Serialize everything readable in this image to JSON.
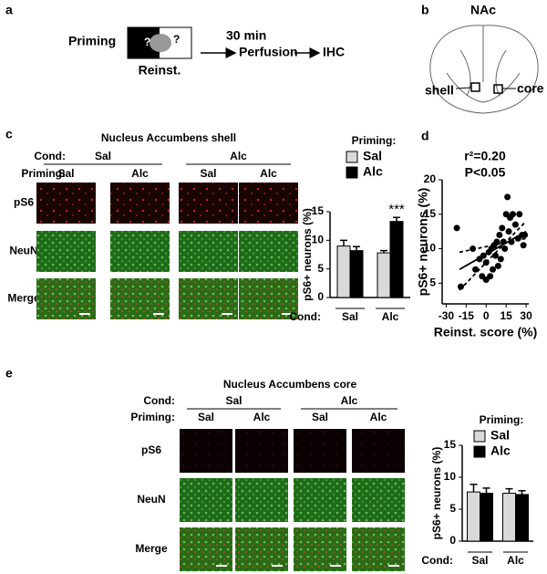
{
  "panel_a": {
    "label": "a",
    "priming": "Priming",
    "question_marks": [
      "?",
      "?"
    ],
    "reinst": "Reinst.",
    "delay": "30 min",
    "step1": "Perfusion",
    "step2": "IHC"
  },
  "panel_b": {
    "label": "b",
    "title": "NAc",
    "shell": "shell",
    "core": "core"
  },
  "panel_c": {
    "label": "c",
    "title": "Nucleus Accumbens shell",
    "cond_label": "Cond:",
    "conditions": [
      "Sal",
      "Alc"
    ],
    "priming_label": "Priming:",
    "priming": [
      "Sal",
      "Alc",
      "Sal",
      "Alc"
    ],
    "rows": [
      "pS6",
      "NeuN",
      "Merge"
    ]
  },
  "panel_d": {
    "label": "d"
  },
  "panel_e": {
    "label": "e",
    "title": "Nucleus Accumbens core",
    "cond_label": "Cond:",
    "conditions": [
      "Sal",
      "Alc"
    ],
    "priming_label": "Priming:",
    "priming": [
      "Sal",
      "Alc",
      "Sal",
      "Alc"
    ],
    "rows": [
      "pS6",
      "NeuN",
      "Merge"
    ]
  },
  "chart_data": [
    {
      "type": "bar",
      "ylabel": "pS6+ neurons (%)",
      "x_prefix": "Cond:",
      "categories": [
        "Sal",
        "Alc"
      ],
      "legend_title": "Priming:",
      "series": [
        {
          "name": "Sal",
          "color": "#d9d9d9",
          "values": [
            9,
            7.8
          ],
          "errors": [
            1,
            0.4
          ]
        },
        {
          "name": "Alc",
          "color": "#000000",
          "values": [
            8.2,
            13.3
          ],
          "errors": [
            0.7,
            0.7
          ],
          "annotations": [
            null,
            "***"
          ]
        }
      ],
      "ylim": [
        0,
        15
      ],
      "yticks": [
        0,
        5,
        10,
        15
      ]
    },
    {
      "type": "scatter",
      "xlabel": "Reinst. score (%)",
      "ylabel": "pS6+ neurons (%)",
      "annotations": [
        "r²=0.20",
        "P<0.05"
      ],
      "color": "#000000",
      "x": [
        -22,
        -19,
        -10,
        -8,
        -5,
        -3,
        -2,
        0,
        0,
        2,
        3,
        4,
        5,
        6,
        7,
        8,
        9,
        10,
        11,
        12,
        13,
        14,
        15,
        16,
        17,
        18,
        19,
        20,
        22,
        24,
        25,
        27,
        28,
        29
      ],
      "y": [
        13,
        4.5,
        10,
        7,
        8.5,
        6,
        9,
        5.5,
        8,
        9.5,
        6,
        10,
        7,
        10.5,
        9,
        11,
        7.5,
        12,
        8.5,
        13,
        11,
        10,
        15,
        17.5,
        12.5,
        14.5,
        11,
        15,
        13.5,
        11.5,
        15,
        12,
        10.5,
        12
      ],
      "lines": [
        {
          "style": "solid",
          "x": [
            -20,
            30
          ],
          "y": [
            7,
            12.5
          ]
        },
        {
          "style": "dashed",
          "x": [
            -20,
            30
          ],
          "y": [
            9.5,
            11.5
          ]
        },
        {
          "style": "dashed",
          "x": [
            -20,
            30
          ],
          "y": [
            4,
            14
          ]
        }
      ],
      "xlim": [
        -33,
        32
      ],
      "xticks": [
        -30,
        -15,
        0,
        15,
        30
      ],
      "ylim": [
        2,
        20
      ],
      "yticks": [
        5,
        10,
        15,
        20
      ]
    },
    {
      "type": "bar",
      "ylabel": "pS6+ neurons (%)",
      "x_prefix": "Cond:",
      "categories": [
        "Sal",
        "Alc"
      ],
      "legend_title": "Priming:",
      "series": [
        {
          "name": "Sal",
          "color": "#d9d9d9",
          "values": [
            7.7,
            7.5
          ],
          "errors": [
            1.2,
            0.7
          ]
        },
        {
          "name": "Alc",
          "color": "#000000",
          "values": [
            7.5,
            7.3
          ],
          "errors": [
            0.8,
            0.6
          ]
        }
      ],
      "ylim": [
        0,
        15
      ],
      "yticks": [
        0,
        5,
        10,
        15
      ]
    }
  ]
}
